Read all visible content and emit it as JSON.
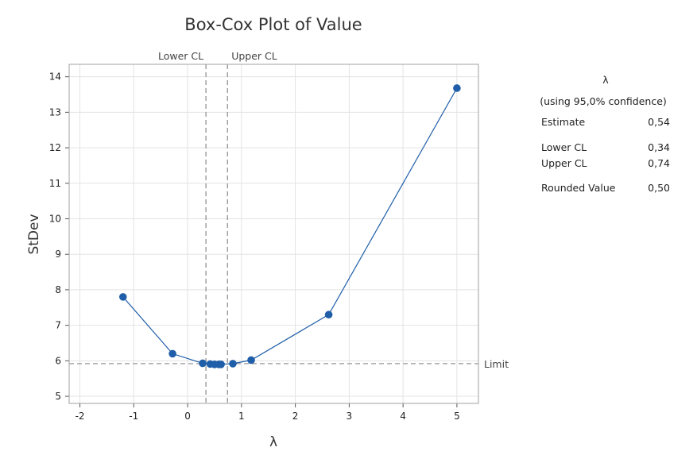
{
  "chart_data": {
    "type": "line",
    "title": "Box-Cox Plot of Value",
    "xlabel": "λ",
    "ylabel": "StDev",
    "xlim": [
      -2.2,
      5.4
    ],
    "ylim": [
      4.8,
      14.35
    ],
    "x_ticks": [
      -2,
      -1,
      0,
      1,
      2,
      3,
      4,
      5
    ],
    "y_ticks": [
      5,
      6,
      7,
      8,
      9,
      10,
      11,
      12,
      13,
      14
    ],
    "grid": true,
    "series": [
      {
        "color": "#1f5ea8",
        "x": [
          -1.2,
          -0.28,
          0.28,
          0.42,
          0.5,
          0.58,
          0.62,
          0.84,
          1.18,
          2.62,
          5.0
        ],
        "y": [
          7.8,
          6.2,
          5.93,
          5.91,
          5.9,
          5.9,
          5.9,
          5.92,
          6.02,
          7.3,
          13.68
        ]
      }
    ],
    "reference_lines": {
      "vertical": [
        {
          "label": "Lower CL",
          "x": 0.34
        },
        {
          "label": "Upper CL",
          "x": 0.74
        }
      ],
      "horizontal": [
        {
          "label": "Limit",
          "y": 5.92
        }
      ]
    }
  },
  "summary_table": {
    "header": "λ",
    "subheader": "(using 95,0% confidence)",
    "rows": [
      {
        "label": "Estimate",
        "value": "0,54"
      },
      {
        "label": "Lower CL",
        "value": "0,34"
      },
      {
        "label": "Upper CL",
        "value": "0,74"
      },
      {
        "label": "Rounded Value",
        "value": "0,50"
      }
    ]
  }
}
